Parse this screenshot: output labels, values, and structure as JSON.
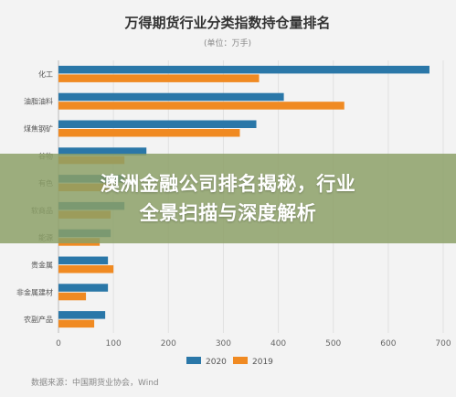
{
  "chart_data": {
    "type": "bar",
    "orientation": "horizontal",
    "title": "万得期货行业分类指数持仓量排名",
    "subtitle": "(单位：万手)",
    "categories": [
      "化工",
      "油脂油料",
      "煤焦钢矿",
      "谷物",
      "有色",
      "软商品",
      "能源",
      "贵金属",
      "非金属建材",
      "农副产品"
    ],
    "series": [
      {
        "name": "2020",
        "color": "#2a77a8",
        "values": [
          675,
          410,
          360,
          160,
          120,
          120,
          95,
          90,
          90,
          85
        ]
      },
      {
        "name": "2019",
        "color": "#f08a22",
        "values": [
          365,
          520,
          330,
          120,
          95,
          95,
          75,
          100,
          50,
          65
        ]
      }
    ],
    "xlim": [
      0,
      700
    ],
    "xticks": [
      0,
      100,
      200,
      300,
      400,
      500,
      600,
      700
    ],
    "grid": true,
    "legend": "bottom",
    "source": "数据来源：中国期货业协会，Wind"
  },
  "banner": {
    "line1": "澳洲金融公司排名揭秘，行业",
    "line2": "全景扫描与深度解析"
  }
}
